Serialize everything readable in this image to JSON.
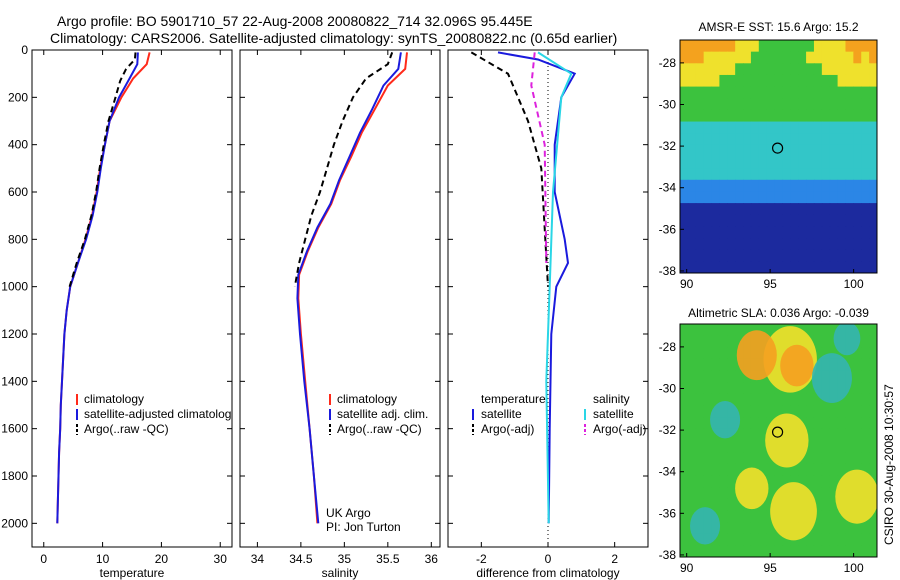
{
  "header": {
    "line1": "Argo profile: BO 5901710_57 22-Aug-2008 20080822_714 32.096S 95.445E",
    "line2": "Climatology: CARS2006. Satellite-adjusted climatology: synTS_20080822.nc (0.65d earlier)"
  },
  "credit": "CSIRO 30-Aug-2008 10:30:57",
  "colors": {
    "climatology": "#ff2a1a",
    "satellite": "#1a1add",
    "argo": "#000000",
    "salinity_satellite": "#2ad6e6",
    "salinity_argo": "#dd22dd"
  },
  "chart_data": [
    {
      "type": "line",
      "id": "temperature",
      "xlabel": "temperature",
      "ylabel": "",
      "xlim": [
        -2,
        32
      ],
      "ylim": [
        2100,
        0
      ],
      "xticks": [
        0,
        10,
        20,
        30
      ],
      "yticks": [
        0,
        200,
        400,
        600,
        800,
        1000,
        1200,
        1400,
        1600,
        1800,
        2000
      ],
      "legend": [
        "climatology",
        "satellite-adjusted climatolog",
        "Argo(..raw -QC)"
      ],
      "series": [
        {
          "name": "climatology",
          "color": "#ff2a1a",
          "style": "solid",
          "points": [
            [
              18,
              10
            ],
            [
              17.5,
              60
            ],
            [
              15.2,
              120
            ],
            [
              13.2,
              200
            ],
            [
              11.2,
              300
            ],
            [
              10.4,
              400
            ],
            [
              9.6,
              500
            ],
            [
              9,
              600
            ],
            [
              8.2,
              700
            ],
            [
              7.1,
              800
            ],
            [
              5.8,
              900
            ],
            [
              4.5,
              1000
            ],
            [
              3.9,
              1100
            ],
            [
              3.5,
              1200
            ],
            [
              3.3,
              1300
            ],
            [
              3.1,
              1400
            ],
            [
              2.9,
              1500
            ],
            [
              2.8,
              1600
            ],
            [
              2.6,
              1700
            ],
            [
              2.5,
              1800
            ],
            [
              2.4,
              1900
            ],
            [
              2.3,
              2000
            ]
          ]
        },
        {
          "name": "satellite-adjusted climatolog",
          "color": "#1a1add",
          "style": "solid",
          "points": [
            [
              16,
              10
            ],
            [
              15.9,
              60
            ],
            [
              14.6,
              120
            ],
            [
              12.8,
              200
            ],
            [
              11.2,
              300
            ],
            [
              10.4,
              400
            ],
            [
              9.7,
              500
            ],
            [
              9.1,
              600
            ],
            [
              8.3,
              700
            ],
            [
              7.2,
              800
            ],
            [
              5.8,
              900
            ],
            [
              4.5,
              1000
            ],
            [
              3.9,
              1100
            ],
            [
              3.5,
              1200
            ],
            [
              3.3,
              1300
            ],
            [
              3.1,
              1400
            ],
            [
              2.9,
              1500
            ],
            [
              2.8,
              1600
            ],
            [
              2.6,
              1700
            ],
            [
              2.5,
              1800
            ],
            [
              2.4,
              1900
            ],
            [
              2.3,
              2000
            ]
          ]
        },
        {
          "name": "Argo(..raw -QC)",
          "color": "#000000",
          "style": "dashed",
          "points": [
            [
              15.6,
              10
            ],
            [
              15.5,
              40
            ],
            [
              14,
              80
            ],
            [
              13,
              130
            ],
            [
              12.2,
              200
            ],
            [
              11,
              300
            ],
            [
              10.2,
              400
            ],
            [
              9.5,
              500
            ],
            [
              8.9,
              600
            ],
            [
              8.1,
              700
            ],
            [
              7,
              800
            ],
            [
              5.6,
              900
            ],
            [
              4.4,
              1000
            ]
          ]
        }
      ]
    },
    {
      "type": "line",
      "id": "salinity",
      "xlabel": "salinity",
      "ylabel": "",
      "xlim": [
        33.8,
        36.1
      ],
      "ylim": [
        2100,
        0
      ],
      "xticks": [
        34,
        34.5,
        35,
        35.5,
        36
      ],
      "legend": [
        "climatology",
        "satellite adj. clim.",
        "Argo(..raw -QC)"
      ],
      "annotations": [
        "UK Argo",
        "PI: Jon Turton"
      ],
      "series": [
        {
          "name": "climatology",
          "color": "#ff2a1a",
          "style": "solid",
          "points": [
            [
              35.72,
              10
            ],
            [
              35.7,
              80
            ],
            [
              35.5,
              150
            ],
            [
              35.35,
              250
            ],
            [
              35.2,
              350
            ],
            [
              35.08,
              450
            ],
            [
              34.95,
              550
            ],
            [
              34.85,
              650
            ],
            [
              34.7,
              750
            ],
            [
              34.58,
              850
            ],
            [
              34.48,
              950
            ],
            [
              34.47,
              1050
            ],
            [
              34.5,
              1200
            ],
            [
              34.55,
              1400
            ],
            [
              34.6,
              1600
            ],
            [
              34.65,
              1800
            ],
            [
              34.69,
              2000
            ]
          ]
        },
        {
          "name": "satellite adj. clim.",
          "color": "#1a1add",
          "style": "solid",
          "points": [
            [
              35.65,
              10
            ],
            [
              35.62,
              80
            ],
            [
              35.45,
              150
            ],
            [
              35.32,
              250
            ],
            [
              35.18,
              350
            ],
            [
              35.06,
              450
            ],
            [
              34.94,
              550
            ],
            [
              34.84,
              650
            ],
            [
              34.69,
              750
            ],
            [
              34.57,
              850
            ],
            [
              34.47,
              950
            ],
            [
              34.46,
              1050
            ],
            [
              34.49,
              1200
            ],
            [
              34.54,
              1400
            ],
            [
              34.6,
              1600
            ],
            [
              34.65,
              1800
            ],
            [
              34.7,
              2000
            ]
          ]
        },
        {
          "name": "Argo(..raw -QC)",
          "color": "#000000",
          "style": "dashed",
          "points": [
            [
              35.55,
              10
            ],
            [
              35.5,
              60
            ],
            [
              35.25,
              120
            ],
            [
              35.1,
              200
            ],
            [
              34.98,
              300
            ],
            [
              34.88,
              400
            ],
            [
              34.8,
              500
            ],
            [
              34.72,
              600
            ],
            [
              34.62,
              700
            ],
            [
              34.55,
              800
            ],
            [
              34.48,
              900
            ],
            [
              34.43,
              1000
            ]
          ]
        }
      ]
    },
    {
      "type": "line",
      "id": "difference",
      "xlabel": "difference from climatology",
      "ylabel": "",
      "xlim": [
        -3,
        3
      ],
      "ylim": [
        2100,
        0
      ],
      "xticks": [
        -2,
        0,
        2
      ],
      "legend_groups": [
        {
          "heading": "temperature",
          "entries": [
            "satellite",
            "Argo(-adj)"
          ]
        },
        {
          "heading": "salinity",
          "entries": [
            "satellite",
            "Argo(-adj)"
          ]
        }
      ],
      "series": [
        {
          "name": "satellite",
          "group": "temperature",
          "color": "#1a1add",
          "style": "solid",
          "points": [
            [
              -1.5,
              10
            ],
            [
              -0.3,
              40
            ],
            [
              0.8,
              100
            ],
            [
              0.4,
              200
            ],
            [
              0.2,
              400
            ],
            [
              0.2,
              600
            ],
            [
              0.5,
              800
            ],
            [
              0.6,
              900
            ],
            [
              0.25,
              1000
            ],
            [
              0.1,
              1200
            ],
            [
              0.05,
              1600
            ],
            [
              0.02,
              2000
            ]
          ]
        },
        {
          "name": "Argo(-adj)",
          "group": "temperature",
          "color": "#000000",
          "style": "dashed",
          "points": [
            [
              -2.3,
              10
            ],
            [
              -1.2,
              100
            ],
            [
              -0.9,
              200
            ],
            [
              -0.6,
              300
            ],
            [
              -0.2,
              500
            ],
            [
              0,
              1000
            ]
          ]
        },
        {
          "name": "satellite",
          "group": "salinity",
          "color": "#2ad6e6",
          "style": "solid",
          "points": [
            [
              -0.3,
              10
            ],
            [
              0.7,
              100
            ],
            [
              0.4,
              200
            ],
            [
              0.15,
              600
            ],
            [
              0.05,
              1000
            ],
            [
              -0.05,
              1400
            ],
            [
              0.02,
              2000
            ]
          ]
        },
        {
          "name": "Argo(-adj)",
          "group": "salinity",
          "color": "#dd22dd",
          "style": "dashed",
          "points": [
            [
              -0.4,
              10
            ],
            [
              -0.5,
              150
            ],
            [
              -0.1,
              400
            ],
            [
              -0.05,
              900
            ]
          ]
        }
      ]
    },
    {
      "type": "heatmap",
      "id": "sst-map",
      "title": "AMSR-E SST: 15.6 Argo: 15.2",
      "xlim": [
        89.6,
        101.4
      ],
      "ylim": [
        -38.1,
        -26.9
      ],
      "xticks": [
        90,
        95,
        100
      ],
      "yticks": [
        -28,
        -30,
        -32,
        -34,
        -36,
        -38
      ],
      "marker": {
        "x": 95.445,
        "y": -32.096
      },
      "rows": [
        "OOOOOOOYYYGGGGGGGYYYYOOOO",
        "OOOYYYYYYGGGGGGGYYYYYYOYO",
        "YYYYYYYGGGGGGGGGGGYYYYYYY",
        "YYYYYGGGGGGGGGGGGGGGYYYYY",
        "GGGGGGGGGGGGGGGGGGGGGGGGG",
        "GGGGGGGGGGGGGGGGGGGGGGGGG",
        "GGGGGGGGGGGGGGGGGGGGGGGGG",
        "CCCCCCCCCCCCCCCCCCCCCCCCC",
        "CCCCCCCCCCCCCCCCCCCCCCCCC",
        "CCCCCCCCCCCCCCCCCCCCCCCCC",
        "CCCCCCCCCCCCCCCCCCCCCCCCC",
        "CCCCCCCCCCCCCCCCCCCCCCCCC",
        "BBBBBBBBBBBBBBBBBBBBBBBBB",
        "BBBBBBBBBBBBBBBBBBBBBBBBB",
        "NNNNNNNNNNNNNNNNNNNNNNNNN",
        "NNNNNNNNNNNNNNNNNNNNNNNNN",
        "NNNNNNNNNNNNNNNNNNNNNNNNN",
        "NNNNNNNNNNNNNNNNNNNNNNNNN",
        "NNNNNNNNNNNNNNNNNNNNNNNNN",
        "NNNNNNNNNNNNNNNNNNNNNNNNN"
      ]
    },
    {
      "type": "heatmap",
      "id": "sla-map",
      "title": "Altimetric SLA: 0.036 Argo: -0.039",
      "xlim": [
        89.6,
        101.4
      ],
      "ylim": [
        -38.1,
        -26.9
      ],
      "xticks": [
        90,
        95,
        100
      ],
      "yticks": [
        -28,
        -30,
        -32,
        -34,
        -36,
        -38
      ],
      "marker": {
        "x": 95.445,
        "y": -32.096
      },
      "rows": [
        "GGGGGGGGGGGGGGGGGGGGGGGGG",
        "GGGGGGGGGGGGGGGGGGGGGGGGG",
        "GGGGGGGGGGGGGGGGGGGGGGGGG",
        "GGGGGGGGGGGGGGGGGGGGGGGGG",
        "GGGGGGGGGGGGGGGGGGGGGGGGG",
        "GGGGGGGGGGGGGGGGGGGGGGGGG",
        "GGGGGGGGGGGGGGGGGGGGGGGGG",
        "GGGGGGGGGGGGGGGGGGGGGGGGG",
        "GGGGGGGGGGGGGGGGGGGGGGGGG",
        "GGGGGGGGGGGGGGGGGGGGGGGGG",
        "GGGGGGGGGGGGGGGGGGGGGGGGG",
        "GGGGGGGGGGGGGGGGGGGGGGGGG",
        "GGGGGGGGGGGGGGGGGGGGGGGGG",
        "GGGGGGGGGGGGGGGGGGGGGGGGG",
        "GGGGGGGGGGGGGGGGGGGGGGGGG",
        "GGGGGGGGGGGGGGGGGGGGGGGGG",
        "GGGGGGGGGGGGGGGGGGGGGGGGG",
        "GGGGGGGGGGGGGGGGGGGGGGGGG",
        "GGGGGGGGGGGGGGGGGGGGGGGGG",
        "GGGGGGGGGGGGGGGGGGGGGGGGG"
      ],
      "overlay_blobs": [
        {
          "lon": 96.2,
          "lat": -28.6,
          "r": 1.6,
          "color": "Y"
        },
        {
          "lon": 94.2,
          "lat": -28.4,
          "r": 1.2,
          "color": "O"
        },
        {
          "lon": 96.6,
          "lat": -28.9,
          "r": 1.0,
          "color": "O"
        },
        {
          "lon": 92.3,
          "lat": -31.5,
          "r": 0.9,
          "color": "T"
        },
        {
          "lon": 98.7,
          "lat": -29.5,
          "r": 1.2,
          "color": "T"
        },
        {
          "lon": 96.0,
          "lat": -32.5,
          "r": 1.3,
          "color": "Y"
        },
        {
          "lon": 93.9,
          "lat": -34.8,
          "r": 1.0,
          "color": "Y"
        },
        {
          "lon": 96.4,
          "lat": -35.9,
          "r": 1.4,
          "color": "Y"
        },
        {
          "lon": 100.2,
          "lat": -35.2,
          "r": 1.3,
          "color": "Y"
        },
        {
          "lon": 91.1,
          "lat": -36.6,
          "r": 0.9,
          "color": "T"
        },
        {
          "lon": 99.6,
          "lat": -27.6,
          "r": 0.8,
          "color": "T"
        }
      ],
      "palette": {
        "O": "#f5a020",
        "Y": "#f2e02a",
        "G": "#2fc23a",
        "T": "#34b5b0"
      }
    }
  ]
}
